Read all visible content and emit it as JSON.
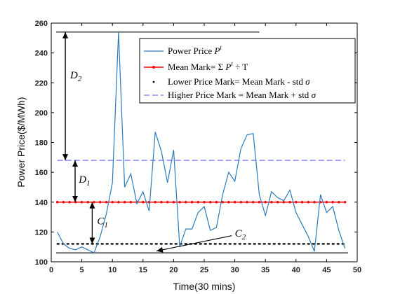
{
  "chart_data": {
    "type": "line",
    "title": "",
    "xlabel": "Time(30 mins)",
    "ylabel": "Power Price($/MWh)",
    "xlim": [
      0,
      50
    ],
    "ylim": [
      100,
      260
    ],
    "xticks": [
      0,
      5,
      10,
      15,
      20,
      25,
      30,
      35,
      40,
      45,
      50
    ],
    "yticks": [
      100,
      120,
      140,
      160,
      180,
      200,
      220,
      240,
      260
    ],
    "grid": false,
    "legend_position": "top-right",
    "series": [
      {
        "name": "Power Price P^t",
        "color": "#2b7bba",
        "style": "solid",
        "x": [
          1,
          2,
          3,
          4,
          5,
          6,
          7,
          8,
          9,
          10,
          11,
          12,
          13,
          14,
          15,
          16,
          17,
          18,
          19,
          20,
          21,
          22,
          23,
          24,
          25,
          26,
          27,
          28,
          29,
          30,
          31,
          32,
          33,
          34,
          35,
          36,
          37,
          38,
          39,
          40,
          41,
          42,
          43,
          44,
          45,
          46,
          47,
          48
        ],
        "values": [
          120,
          112,
          109,
          108,
          110,
          108,
          106,
          117,
          132,
          153,
          254,
          150,
          159,
          139,
          147,
          134,
          187,
          174,
          153,
          175,
          110,
          122,
          122,
          133,
          137,
          121,
          123,
          145,
          160,
          154,
          176,
          185,
          186,
          145,
          131,
          147,
          143,
          141,
          148,
          133,
          125,
          117,
          107,
          145,
          133,
          137,
          121,
          109
        ]
      },
      {
        "name": "Mean Mark= Σ P^t ÷ T",
        "color": "#ff0000",
        "style": "solid-dotted",
        "x": [
          1,
          48
        ],
        "values": [
          140,
          140
        ]
      },
      {
        "name": "Lower Price Mark= Mean Mark - std σ",
        "color": "#000000",
        "style": "dotted",
        "x": [
          1,
          48
        ],
        "values": [
          112,
          112
        ]
      },
      {
        "name": "Higher Price Mark = Mean Mark + std σ",
        "color": "#7b7bff",
        "style": "dashed",
        "x": [
          1,
          48
        ],
        "values": [
          168,
          168
        ]
      }
    ],
    "reference_lines": {
      "max_price": 254,
      "min_price": 106
    },
    "legend": {
      "entries": [
        {
          "main": "Power Price ",
          "sym": "P",
          "sup": "t",
          "after": ""
        },
        {
          "main": "Mean Mark=  Σ  ",
          "sym": "P",
          "sup": "t",
          "after": " ÷ T"
        },
        {
          "main": "Lower Price Mark= Mean Mark - std  ",
          "sym": "σ",
          "sup": "",
          "after": ""
        },
        {
          "main": "Higher Price Mark = Mean Mark + std  ",
          "sym": "σ",
          "sup": "",
          "after": ""
        }
      ]
    },
    "annotations": [
      {
        "id": "D2",
        "letter": "D",
        "sub": "2"
      },
      {
        "id": "D1",
        "letter": "D",
        "sub": "1"
      },
      {
        "id": "C1",
        "letter": "C",
        "sub": "1"
      },
      {
        "id": "C2",
        "letter": "C",
        "sub": "2"
      }
    ]
  }
}
